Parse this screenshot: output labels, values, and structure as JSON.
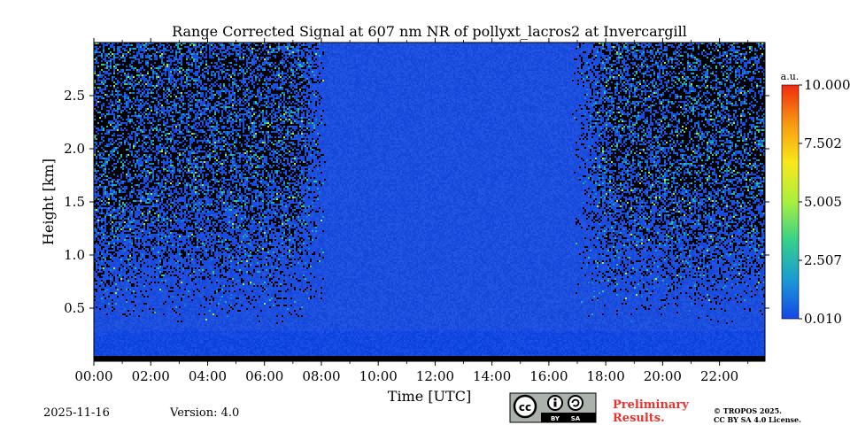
{
  "chart_data": {
    "type": "heatmap",
    "title": "Range Corrected Signal at 607 nm NR of pollyxt_lacros2 at Invercargill",
    "xlabel": "Time [UTC]",
    "ylabel": "Height [km]",
    "xlim": [
      0,
      23.6
    ],
    "ylim": [
      0,
      3.0
    ],
    "x_ticks": [
      {
        "v": 0,
        "label": "00:00"
      },
      {
        "v": 2,
        "label": "02:00"
      },
      {
        "v": 4,
        "label": "04:00"
      },
      {
        "v": 6,
        "label": "06:00"
      },
      {
        "v": 8,
        "label": "08:00"
      },
      {
        "v": 10,
        "label": "10:00"
      },
      {
        "v": 12,
        "label": "12:00"
      },
      {
        "v": 14,
        "label": "14:00"
      },
      {
        "v": 16,
        "label": "16:00"
      },
      {
        "v": 18,
        "label": "18:00"
      },
      {
        "v": 20,
        "label": "20:00"
      },
      {
        "v": 22,
        "label": "22:00"
      }
    ],
    "y_ticks": [
      {
        "v": 0.5,
        "label": "0.5"
      },
      {
        "v": 1.0,
        "label": "1.0"
      },
      {
        "v": 1.5,
        "label": "1.5"
      },
      {
        "v": 2.0,
        "label": "2.0"
      },
      {
        "v": 2.5,
        "label": "2.5"
      }
    ],
    "colorbar": {
      "unit": "a.u.",
      "min": 0.01,
      "max": 10.0,
      "ticks": [
        {
          "v": 0.01,
          "label": "0.010"
        },
        {
          "v": 2.507,
          "label": "2.507"
        },
        {
          "v": 5.005,
          "label": "5.005"
        },
        {
          "v": 7.502,
          "label": "7.502"
        },
        {
          "v": 10.0,
          "label": "10.000"
        }
      ],
      "colors": [
        "#1447e6",
        "#1a9ad6",
        "#35d08a",
        "#a8f040",
        "#f8e81a",
        "#f89a10",
        "#f02a10"
      ]
    },
    "noise_regions": [
      {
        "t_start": 0.0,
        "t_end": 8.2,
        "level": "noisy"
      },
      {
        "t_start": 8.2,
        "t_end": 16.8,
        "level": "quiet"
      },
      {
        "t_start": 16.8,
        "t_end": 23.6,
        "level": "noisy"
      }
    ]
  },
  "footer": {
    "date": "2025-11-16",
    "version": "Version: 4.0",
    "cc_badge": "cc BY SA",
    "preliminary_line1": "Preliminary",
    "preliminary_line2": "Results.",
    "copyright_line1": "© TROPOS 2025.",
    "copyright_line2": "CC BY SA 4.0 License."
  },
  "colors": {
    "base_blue": "#1f52dc",
    "prelim_red": "#e8332f"
  }
}
